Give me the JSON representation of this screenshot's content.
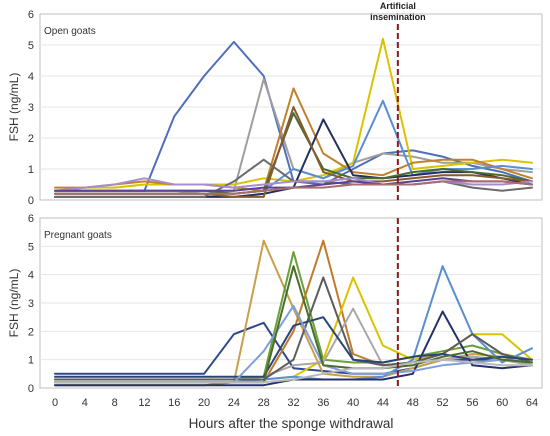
{
  "chart_data": {
    "type": "line",
    "xlabel": "Hours after the sponge withdrawal",
    "ylabel": "FSH (ng/mL)",
    "x": [
      0,
      4,
      8,
      12,
      16,
      20,
      24,
      28,
      32,
      36,
      40,
      44,
      48,
      52,
      56,
      60,
      64
    ],
    "xlim": [
      0,
      64
    ],
    "ylim": [
      0,
      6
    ],
    "yticks": [
      0,
      1,
      2,
      3,
      4,
      5,
      6
    ],
    "annotation": {
      "text_line1": "Artificial",
      "text_line2": "insemination",
      "x": 46,
      "color": "#8b1a1a"
    },
    "panels": [
      {
        "title": "Open goats",
        "series": [
          {
            "color": "#4f6fb8",
            "values": [
              0.3,
              0.3,
              0.3,
              0.3,
              2.7,
              4.0,
              5.1,
              4.0,
              0.6,
              0.5,
              1.0,
              1.5,
              1.6,
              1.4,
              1.1,
              0.9,
              0.6
            ]
          },
          {
            "color": "#9e9e9e",
            "values": [
              0.2,
              0.2,
              0.2,
              0.2,
              0.2,
              0.3,
              0.3,
              3.9,
              1.0,
              0.7,
              1.2,
              1.5,
              1.4,
              1.2,
              1.2,
              1.0,
              0.9
            ]
          },
          {
            "color": "#d9c300",
            "values": [
              0.3,
              0.4,
              0.4,
              0.5,
              0.5,
              0.5,
              0.5,
              0.7,
              0.6,
              0.8,
              1.2,
              5.2,
              1.0,
              1.1,
              1.2,
              1.3,
              1.2
            ]
          },
          {
            "color": "#c0822b",
            "values": [
              0.4,
              0.4,
              0.5,
              0.6,
              0.5,
              0.5,
              0.4,
              0.3,
              3.6,
              1.5,
              0.9,
              0.8,
              1.2,
              1.3,
              1.3,
              1.0,
              0.7
            ]
          },
          {
            "color": "#5a8fcf",
            "values": [
              0.2,
              0.2,
              0.2,
              0.2,
              0.2,
              0.2,
              0.2,
              0.3,
              1.0,
              0.7,
              1.1,
              3.2,
              0.8,
              1.0,
              1.0,
              1.1,
              1.0
            ]
          },
          {
            "color": "#22305e",
            "values": [
              0.1,
              0.1,
              0.1,
              0.1,
              0.1,
              0.1,
              0.1,
              0.2,
              0.4,
              2.6,
              0.8,
              0.7,
              0.8,
              0.9,
              0.9,
              0.7,
              0.5
            ]
          },
          {
            "color": "#4c6b2f",
            "values": [
              0.3,
              0.3,
              0.3,
              0.3,
              0.3,
              0.3,
              0.2,
              0.3,
              2.8,
              1.0,
              0.7,
              0.7,
              0.9,
              1.0,
              0.9,
              0.8,
              0.6
            ]
          },
          {
            "color": "#8a5a2e",
            "values": [
              0.2,
              0.2,
              0.2,
              0.2,
              0.2,
              0.2,
              0.1,
              0.1,
              3.0,
              0.9,
              0.6,
              0.6,
              0.7,
              0.8,
              0.8,
              0.7,
              0.6
            ]
          },
          {
            "color": "#6b6b6b",
            "values": [
              0.1,
              0.1,
              0.1,
              0.1,
              0.1,
              0.1,
              0.6,
              1.3,
              0.6,
              0.6,
              0.5,
              0.5,
              0.5,
              0.6,
              0.4,
              0.3,
              0.4
            ]
          },
          {
            "color": "#a98cd0",
            "values": [
              0.3,
              0.4,
              0.5,
              0.7,
              0.5,
              0.5,
              0.4,
              0.5,
              0.6,
              0.6,
              0.7,
              0.5,
              0.5,
              0.6,
              0.5,
              0.5,
              0.6
            ]
          },
          {
            "color": "#5b4394",
            "values": [
              0.3,
              0.3,
              0.3,
              0.3,
              0.3,
              0.3,
              0.3,
              0.4,
              0.4,
              0.5,
              0.6,
              0.5,
              0.6,
              0.7,
              0.6,
              0.6,
              0.5
            ]
          },
          {
            "color": "#a86e6e",
            "values": [
              0.2,
              0.2,
              0.2,
              0.2,
              0.2,
              0.2,
              0.2,
              0.3,
              0.4,
              0.4,
              0.5,
              0.5,
              0.5,
              0.6,
              0.6,
              0.6,
              0.5
            ]
          }
        ]
      },
      {
        "title": "Pregnant goats",
        "series": [
          {
            "color": "#2f4a8c",
            "values": [
              0.5,
              0.5,
              0.5,
              0.5,
              0.5,
              0.5,
              1.9,
              2.3,
              0.7,
              0.6,
              0.5,
              0.5,
              0.7,
              1.0,
              1.0,
              1.0,
              0.9
            ]
          },
          {
            "color": "#c9a04a",
            "values": [
              0.2,
              0.2,
              0.2,
              0.2,
              0.2,
              0.2,
              0.2,
              5.2,
              2.8,
              0.5,
              0.4,
              0.4,
              0.7,
              1.0,
              1.2,
              1.1,
              0.8
            ]
          },
          {
            "color": "#6b9f3a",
            "values": [
              0.3,
              0.3,
              0.3,
              0.3,
              0.3,
              0.3,
              0.3,
              0.4,
              4.8,
              1.0,
              0.9,
              0.9,
              1.1,
              1.3,
              1.5,
              1.2,
              1.0
            ]
          },
          {
            "color": "#c07a2a",
            "values": [
              0.1,
              0.1,
              0.1,
              0.1,
              0.1,
              0.1,
              0.2,
              0.2,
              2.0,
              5.2,
              1.2,
              0.8,
              0.9,
              1.0,
              1.1,
              1.0,
              0.8
            ]
          },
          {
            "color": "#d9c300",
            "values": [
              0.3,
              0.3,
              0.3,
              0.3,
              0.3,
              0.3,
              0.3,
              0.3,
              0.4,
              1.0,
              3.9,
              1.5,
              1.0,
              1.2,
              1.9,
              1.9,
              1.0
            ]
          },
          {
            "color": "#5a8fcf",
            "values": [
              0.2,
              0.2,
              0.2,
              0.2,
              0.2,
              0.2,
              0.2,
              0.3,
              0.4,
              0.3,
              0.3,
              0.4,
              1.0,
              4.3,
              1.9,
              0.9,
              1.4
            ]
          },
          {
            "color": "#24306b",
            "values": [
              0.1,
              0.1,
              0.1,
              0.1,
              0.1,
              0.1,
              0.1,
              0.1,
              0.3,
              0.3,
              0.3,
              0.3,
              0.5,
              2.7,
              0.8,
              0.7,
              0.8
            ]
          },
          {
            "color": "#a8a8a8",
            "values": [
              0.3,
              0.3,
              0.3,
              0.3,
              0.3,
              0.3,
              0.3,
              0.4,
              0.8,
              0.9,
              2.8,
              0.8,
              0.9,
              1.0,
              1.1,
              1.0,
              0.8
            ]
          },
          {
            "color": "#5d5d5d",
            "values": [
              0.3,
              0.3,
              0.3,
              0.3,
              0.3,
              0.3,
              0.3,
              0.3,
              1.0,
              3.9,
              1.0,
              0.8,
              0.9,
              1.2,
              1.9,
              1.2,
              0.9
            ]
          },
          {
            "color": "#2b4476",
            "values": [
              0.4,
              0.4,
              0.4,
              0.4,
              0.4,
              0.4,
              0.4,
              0.4,
              2.2,
              2.5,
              1.0,
              0.9,
              1.1,
              1.2,
              1.0,
              1.1,
              1.0
            ]
          },
          {
            "color": "#7f9fd6",
            "values": [
              0.2,
              0.2,
              0.2,
              0.2,
              0.2,
              0.2,
              0.2,
              1.3,
              2.9,
              0.8,
              0.5,
              0.5,
              0.6,
              0.8,
              0.9,
              1.0,
              0.9
            ]
          },
          {
            "color": "#4a6e2a",
            "values": [
              0.2,
              0.2,
              0.2,
              0.2,
              0.2,
              0.2,
              0.2,
              0.2,
              4.3,
              0.8,
              0.7,
              0.7,
              0.8,
              1.1,
              1.3,
              1.0,
              0.9
            ]
          },
          {
            "color": "#b9b9b9",
            "values": [
              0.2,
              0.2,
              0.2,
              0.2,
              0.2,
              0.2,
              0.2,
              0.2,
              0.3,
              0.5,
              0.7,
              0.7,
              0.9,
              1.0,
              0.9,
              0.8,
              0.8
            ]
          }
        ]
      }
    ]
  }
}
